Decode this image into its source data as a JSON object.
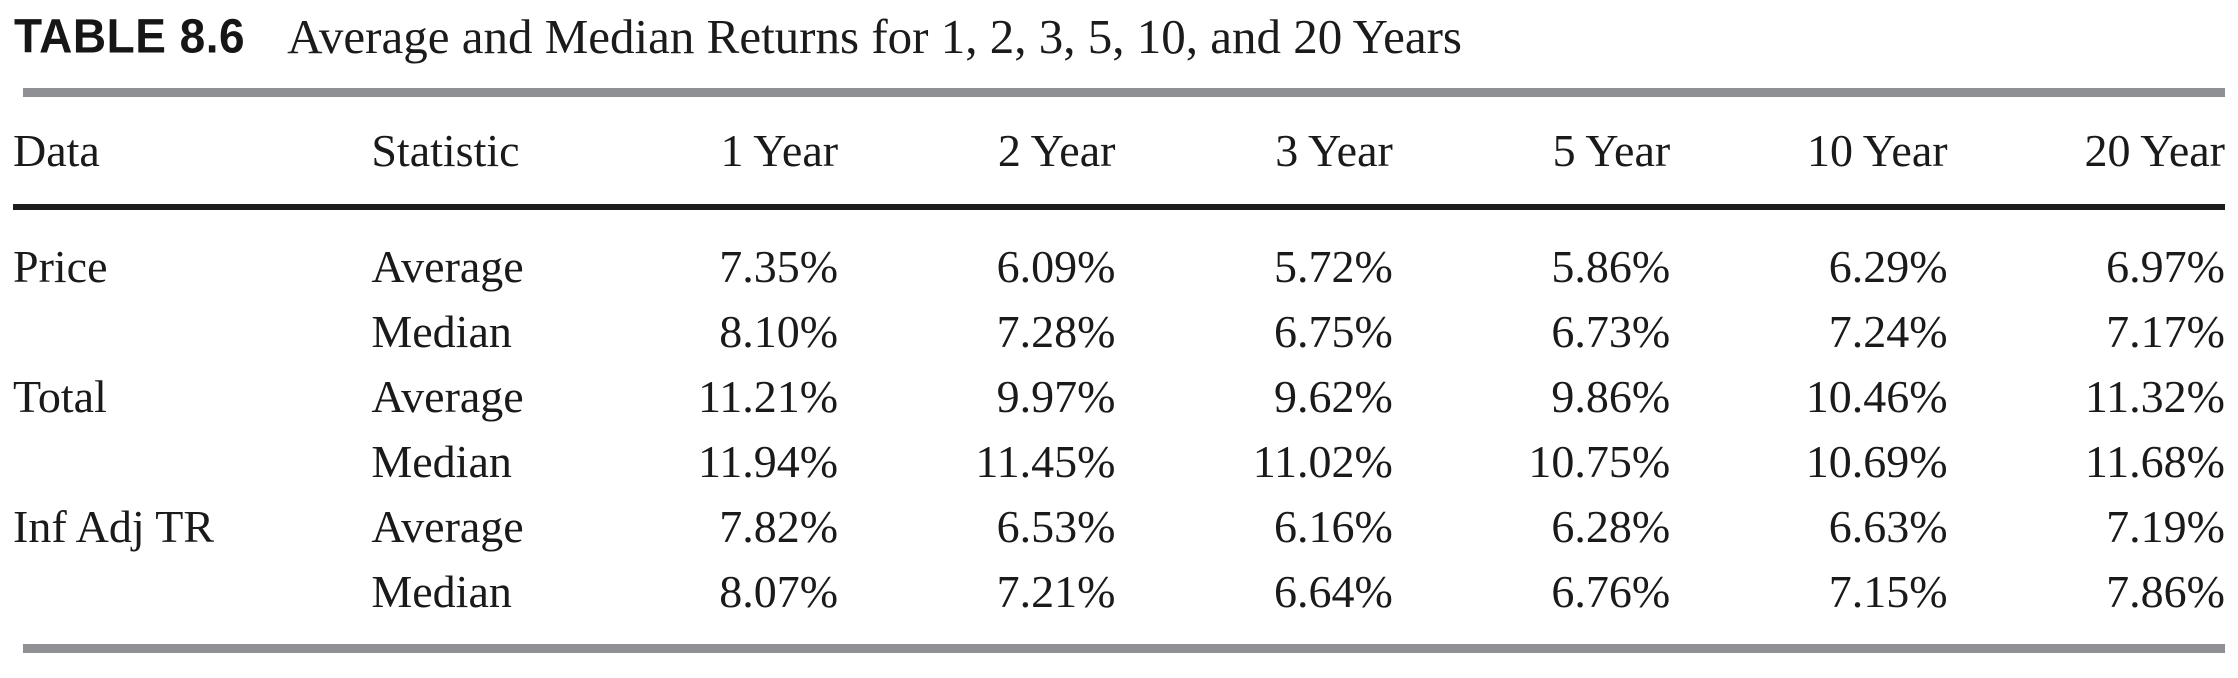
{
  "title": {
    "label": "TABLE 8.6",
    "text": "Average and Median Returns for 1, 2, 3, 5, 10, and 20 Years"
  },
  "table": {
    "columns": [
      "Data",
      "Statistic",
      "1 Year",
      "2 Year",
      "3 Year",
      "5 Year",
      "10 Year",
      "20 Year"
    ],
    "rows": [
      [
        "Price",
        "Average",
        "7.35%",
        "6.09%",
        "5.72%",
        "5.86%",
        "6.29%",
        "6.97%"
      ],
      [
        "",
        "Median",
        "8.10%",
        "7.28%",
        "6.75%",
        "6.73%",
        "7.24%",
        "7.17%"
      ],
      [
        "Total",
        "Average",
        "11.21%",
        "9.97%",
        "9.62%",
        "9.86%",
        "10.46%",
        "11.32%"
      ],
      [
        "",
        "Median",
        "11.94%",
        "11.45%",
        "11.02%",
        "10.75%",
        "10.69%",
        "11.68%"
      ],
      [
        "Inf Adj TR",
        "Average",
        "7.82%",
        "6.53%",
        "6.16%",
        "6.28%",
        "6.63%",
        "7.19%"
      ],
      [
        "",
        "Median",
        "8.07%",
        "7.21%",
        "6.64%",
        "6.76%",
        "7.15%",
        "7.86%"
      ]
    ]
  },
  "chart_data": {
    "type": "table",
    "title": "Average and Median Returns for 1, 2, 3, 5, 10, and 20 Years",
    "columns": [
      "1 Year",
      "2 Year",
      "3 Year",
      "5 Year",
      "10 Year",
      "20 Year"
    ],
    "series": [
      {
        "data": "Price",
        "statistic": "Average",
        "values_pct": [
          7.35,
          6.09,
          5.72,
          5.86,
          6.29,
          6.97
        ]
      },
      {
        "data": "Price",
        "statistic": "Median",
        "values_pct": [
          8.1,
          7.28,
          6.75,
          6.73,
          7.24,
          7.17
        ]
      },
      {
        "data": "Total",
        "statistic": "Average",
        "values_pct": [
          11.21,
          9.97,
          9.62,
          9.86,
          10.46,
          11.32
        ]
      },
      {
        "data": "Total",
        "statistic": "Median",
        "values_pct": [
          11.94,
          11.45,
          11.02,
          10.75,
          10.69,
          11.68
        ]
      },
      {
        "data": "Inf Adj TR",
        "statistic": "Average",
        "values_pct": [
          7.82,
          6.53,
          6.16,
          6.28,
          6.63,
          7.19
        ]
      },
      {
        "data": "Inf Adj TR",
        "statistic": "Median",
        "values_pct": [
          8.07,
          7.21,
          6.64,
          6.76,
          7.15,
          7.86
        ]
      }
    ]
  },
  "colors": {
    "rule_gray": "#8e9093",
    "rule_black": "#1d1d1d",
    "text": "#1a1a1a"
  }
}
